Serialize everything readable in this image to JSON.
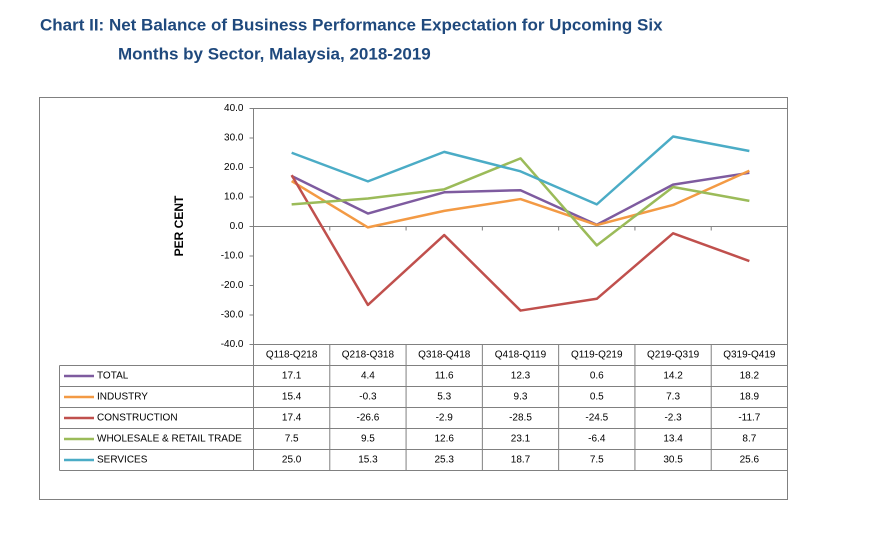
{
  "chart_data": {
    "type": "line",
    "title": [
      "Chart II:  Net Balance of Business Performance Expectation for Upcoming Six",
      "Months by Sector, Malaysia, 2018-2019"
    ],
    "ylabel": "PER CENT",
    "categories": [
      "Q118-Q218",
      "Q218-Q318",
      "Q318-Q418",
      "Q418-Q119",
      "Q119-Q219",
      "Q219-Q319",
      "Q319-Q419"
    ],
    "ylim": [
      -40,
      40
    ],
    "yticks": [
      {
        "value": -40,
        "label": "-40.0"
      },
      {
        "value": -30,
        "label": "-30.0"
      },
      {
        "value": -20,
        "label": "-20.0"
      },
      {
        "value": -10,
        "label": "-10.0"
      },
      {
        "value": 0,
        "label": "0.0"
      },
      {
        "value": 10,
        "label": "10.0"
      },
      {
        "value": 20,
        "label": "20.0"
      },
      {
        "value": 30,
        "label": "30.0"
      },
      {
        "value": 40,
        "label": "40.0"
      }
    ],
    "grid": false,
    "series": [
      {
        "name": "TOTAL",
        "color": "#7e5b9f",
        "values": [
          17.1,
          4.4,
          11.6,
          12.3,
          0.6,
          14.2,
          18.2
        ],
        "value_labels": [
          "17.1",
          "4.4",
          "11.6",
          "12.3",
          "0.6",
          "14.2",
          "18.2"
        ]
      },
      {
        "name": "INDUSTRY",
        "color": "#f39a44",
        "values": [
          15.4,
          -0.3,
          5.3,
          9.3,
          0.5,
          7.3,
          18.9
        ],
        "value_labels": [
          "15.4",
          "-0.3",
          "5.3",
          "9.3",
          "0.5",
          "7.3",
          "18.9"
        ]
      },
      {
        "name": "CONSTRUCTION",
        "color": "#c0504d",
        "values": [
          17.4,
          -26.6,
          -2.9,
          -28.5,
          -24.5,
          -2.3,
          -11.7
        ],
        "value_labels": [
          "17.4",
          "-26.6",
          "-2.9",
          "-28.5",
          "-24.5",
          "-2.3",
          "-11.7"
        ]
      },
      {
        "name": "WHOLESALE & RETAIL TRADE",
        "color": "#9bbb59",
        "values": [
          7.5,
          9.5,
          12.6,
          23.1,
          -6.4,
          13.4,
          8.7
        ],
        "value_labels": [
          "7.5",
          "9.5",
          "12.6",
          "23.1",
          "-6.4",
          "13.4",
          "8.7"
        ]
      },
      {
        "name": "SERVICES",
        "color": "#4bacc6",
        "values": [
          25,
          15.3,
          25.3,
          18.7,
          7.5,
          30.5,
          25.6
        ],
        "value_labels": [
          "25.0",
          "15.3",
          "25.3",
          "18.7",
          "7.5",
          "30.5",
          "25.6"
        ]
      }
    ]
  }
}
